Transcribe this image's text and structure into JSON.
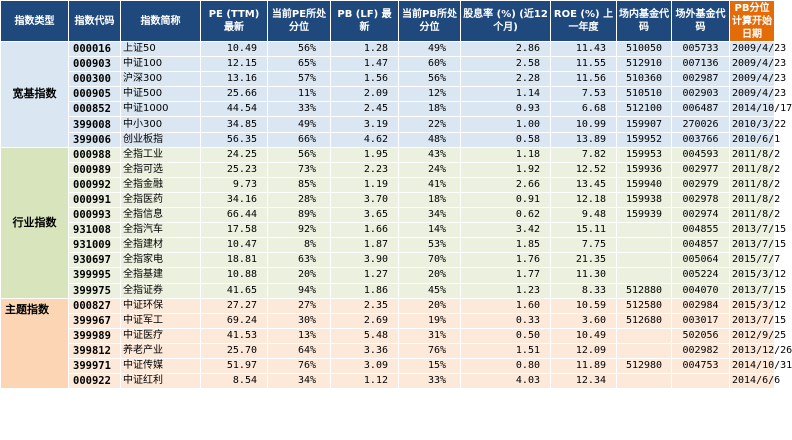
{
  "headers": {
    "category": "指数类型",
    "code": "指数代码",
    "name": "指数简称",
    "pe": "PE (TTM) 最新",
    "pe_pct": "当前PE所处分位",
    "pb": "PB (LF) 最新",
    "pb_pct": "当前PB所处分位",
    "div": "股息率 (%) (近12个月)",
    "roe": "ROE (%) 上一年度",
    "onsite": "场内基金代码",
    "offsite": "场外基金代码",
    "start": "PB分位计算开始日期"
  },
  "groups": [
    {
      "name": "宽基指数",
      "rows": [
        {
          "code": "000016",
          "name": "上证50",
          "pe": "10.49",
          "pe_pct": "56%",
          "pb": "1.28",
          "pb_pct": "49%",
          "div": "2.86",
          "roe": "11.43",
          "onsite": "510050",
          "offsite": "005733",
          "start": "2009/4/23"
        },
        {
          "code": "000903",
          "name": "中证100",
          "pe": "12.15",
          "pe_pct": "65%",
          "pb": "1.47",
          "pb_pct": "60%",
          "div": "2.58",
          "roe": "11.55",
          "onsite": "512910",
          "offsite": "007136",
          "start": "2009/4/23"
        },
        {
          "code": "000300",
          "name": "沪深300",
          "pe": "13.16",
          "pe_pct": "57%",
          "pb": "1.56",
          "pb_pct": "56%",
          "div": "2.28",
          "roe": "11.56",
          "onsite": "510360",
          "offsite": "002987",
          "start": "2009/4/23"
        },
        {
          "code": "000905",
          "name": "中证500",
          "pe": "25.66",
          "pe_pct": "11%",
          "pb": "2.09",
          "pb_pct": "12%",
          "div": "1.14",
          "roe": "7.53",
          "onsite": "510510",
          "offsite": "002903",
          "start": "2009/4/23"
        },
        {
          "code": "000852",
          "name": "中证1000",
          "pe": "44.54",
          "pe_pct": "33%",
          "pb": "2.45",
          "pb_pct": "18%",
          "div": "0.93",
          "roe": "6.68",
          "onsite": "512100",
          "offsite": "006487",
          "start": "2014/10/17"
        },
        {
          "code": "399008",
          "name": "中小300",
          "pe": "34.85",
          "pe_pct": "49%",
          "pb": "3.19",
          "pb_pct": "22%",
          "div": "1.00",
          "roe": "10.99",
          "onsite": "159907",
          "offsite": "270026",
          "start": "2010/3/22"
        },
        {
          "code": "399006",
          "name": "创业板指",
          "pe": "56.35",
          "pe_pct": "66%",
          "pb": "4.62",
          "pb_pct": "48%",
          "div": "0.58",
          "roe": "13.89",
          "onsite": "159952",
          "offsite": "003766",
          "start": "2010/6/1"
        }
      ]
    },
    {
      "name": "行业指数",
      "rows": [
        {
          "code": "000988",
          "name": "全指工业",
          "pe": "24.25",
          "pe_pct": "56%",
          "pb": "1.95",
          "pb_pct": "43%",
          "div": "1.18",
          "roe": "7.82",
          "onsite": "159953",
          "offsite": "004593",
          "start": "2011/8/2"
        },
        {
          "code": "000989",
          "name": "全指可选",
          "pe": "25.23",
          "pe_pct": "73%",
          "pb": "2.23",
          "pb_pct": "24%",
          "div": "1.92",
          "roe": "12.52",
          "onsite": "159936",
          "offsite": "002977",
          "start": "2011/8/2"
        },
        {
          "code": "000992",
          "name": "全指金融",
          "pe": "9.73",
          "pe_pct": "85%",
          "pb": "1.19",
          "pb_pct": "41%",
          "div": "2.66",
          "roe": "13.45",
          "onsite": "159940",
          "offsite": "002979",
          "start": "2011/8/2"
        },
        {
          "code": "000991",
          "name": "全指医药",
          "pe": "34.16",
          "pe_pct": "28%",
          "pb": "3.70",
          "pb_pct": "18%",
          "div": "0.91",
          "roe": "12.18",
          "onsite": "159938",
          "offsite": "002978",
          "start": "2011/8/2"
        },
        {
          "code": "000993",
          "name": "全指信息",
          "pe": "66.44",
          "pe_pct": "89%",
          "pb": "3.65",
          "pb_pct": "34%",
          "div": "0.62",
          "roe": "9.48",
          "onsite": "159939",
          "offsite": "002974",
          "start": "2011/8/2"
        },
        {
          "code": "931008",
          "name": "全指汽车",
          "pe": "17.58",
          "pe_pct": "92%",
          "pb": "1.66",
          "pb_pct": "14%",
          "div": "3.42",
          "roe": "15.11",
          "onsite": "",
          "offsite": "004855",
          "start": "2013/7/15"
        },
        {
          "code": "931009",
          "name": "全指建材",
          "pe": "10.47",
          "pe_pct": "8%",
          "pb": "1.87",
          "pb_pct": "53%",
          "div": "1.85",
          "roe": "7.75",
          "onsite": "",
          "offsite": "004857",
          "start": "2013/7/15"
        },
        {
          "code": "930697",
          "name": "全指家电",
          "pe": "18.81",
          "pe_pct": "63%",
          "pb": "3.90",
          "pb_pct": "70%",
          "div": "1.76",
          "roe": "21.35",
          "onsite": "",
          "offsite": "005064",
          "start": "2015/7/7"
        },
        {
          "code": "399995",
          "name": "全指基建",
          "pe": "10.88",
          "pe_pct": "20%",
          "pb": "1.27",
          "pb_pct": "20%",
          "div": "1.77",
          "roe": "11.30",
          "onsite": "",
          "offsite": "005224",
          "start": "2015/3/12"
        },
        {
          "code": "399975",
          "name": "全指证券",
          "pe": "41.65",
          "pe_pct": "94%",
          "pb": "1.86",
          "pb_pct": "45%",
          "div": "1.23",
          "roe": "8.33",
          "onsite": "512880",
          "offsite": "004070",
          "start": "2013/7/15"
        }
      ]
    },
    {
      "name": "主题指数",
      "rows": [
        {
          "code": "000827",
          "name": "中证环保",
          "pe": "27.27",
          "pe_pct": "27%",
          "pb": "2.35",
          "pb_pct": "20%",
          "div": "1.60",
          "roe": "10.59",
          "onsite": "512580",
          "offsite": "002984",
          "start": "2015/3/12"
        },
        {
          "code": "399967",
          "name": "中证军工",
          "pe": "69.24",
          "pe_pct": "30%",
          "pb": "2.69",
          "pb_pct": "19%",
          "div": "0.33",
          "roe": "3.60",
          "onsite": "512680",
          "offsite": "003017",
          "start": "2013/7/15"
        },
        {
          "code": "399989",
          "name": "中证医疗",
          "pe": "41.53",
          "pe_pct": "13%",
          "pb": "5.48",
          "pb_pct": "31%",
          "div": "0.50",
          "roe": "10.49",
          "onsite": "",
          "offsite": "502056",
          "start": "2012/9/25"
        },
        {
          "code": "399812",
          "name": "养老产业",
          "pe": "25.70",
          "pe_pct": "64%",
          "pb": "3.36",
          "pb_pct": "76%",
          "div": "1.51",
          "roe": "12.09",
          "onsite": "",
          "offsite": "002982",
          "start": "2013/12/26"
        },
        {
          "code": "399971",
          "name": "中证传媒",
          "pe": "51.97",
          "pe_pct": "76%",
          "pb": "3.09",
          "pb_pct": "15%",
          "div": "0.80",
          "roe": "11.89",
          "onsite": "512980",
          "offsite": "004753",
          "start": "2014/10/31"
        },
        {
          "code": "000922",
          "name": "中证红利",
          "pe": "8.54",
          "pe_pct": "34%",
          "pb": "1.12",
          "pb_pct": "33%",
          "div": "4.03",
          "roe": "12.34",
          "onsite": "",
          "offsite": "",
          "start": "2014/6/6"
        }
      ]
    }
  ]
}
